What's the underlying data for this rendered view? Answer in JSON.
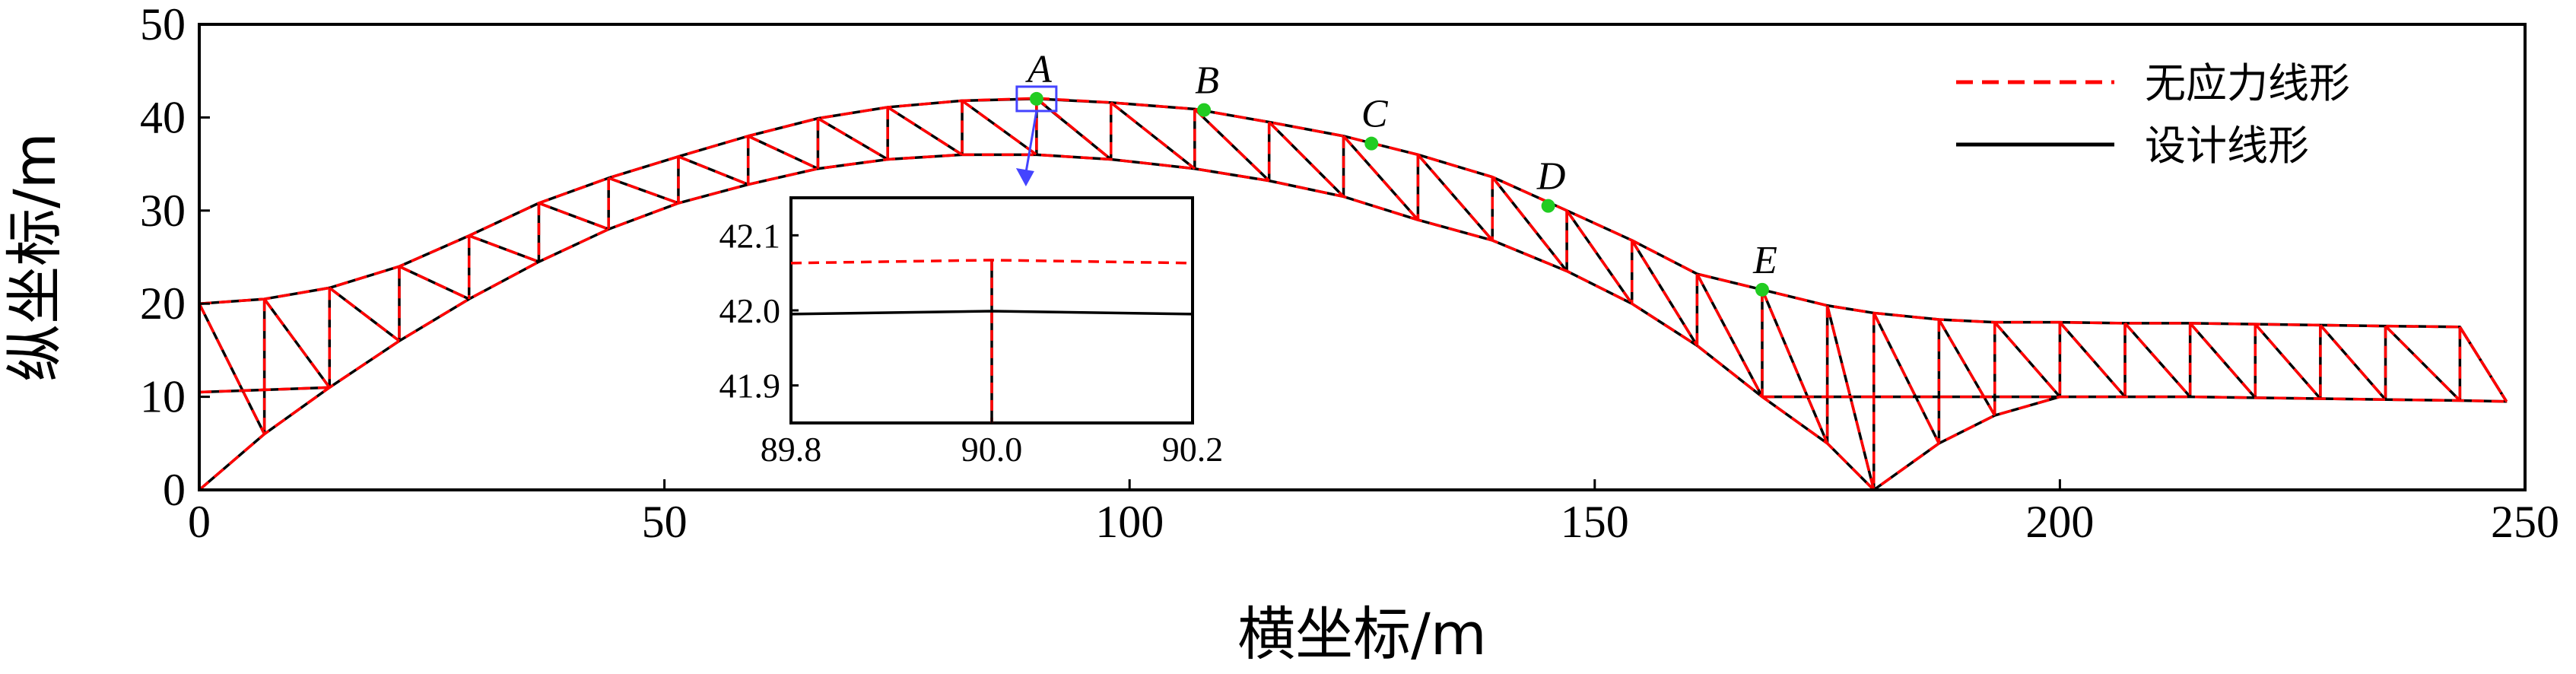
{
  "chart_data": {
    "type": "line",
    "title": "",
    "xlabel": "横坐标/m",
    "ylabel": "纵坐标/m",
    "xlim": [
      0,
      250
    ],
    "ylim": [
      0,
      50
    ],
    "x_ticks": [
      "0",
      "50",
      "100",
      "150",
      "200",
      "250"
    ],
    "y_ticks": [
      "0",
      "10",
      "20",
      "30",
      "40",
      "50"
    ],
    "grid": false,
    "legend_position": "top-right",
    "series": [
      {
        "name": "无应力线形",
        "style": "dashed",
        "color": "#ff0000",
        "top_chord": [
          [
            0,
            20
          ],
          [
            7,
            20.5
          ],
          [
            14,
            21.7
          ],
          [
            21.5,
            24
          ],
          [
            29,
            27.3
          ],
          [
            36.5,
            30.8
          ],
          [
            44,
            33.5
          ],
          [
            51.5,
            35.8
          ],
          [
            59,
            38
          ],
          [
            66.5,
            39.9
          ],
          [
            74,
            41.1
          ],
          [
            82,
            41.8
          ],
          [
            90,
            42.06
          ],
          [
            98,
            41.6
          ],
          [
            107,
            40.9
          ],
          [
            115,
            39.5
          ],
          [
            123,
            38
          ],
          [
            131,
            36
          ],
          [
            139,
            33.6
          ],
          [
            147,
            30
          ],
          [
            154,
            26.8
          ],
          [
            161,
            23.2
          ],
          [
            168,
            21.5
          ],
          [
            175,
            19.8
          ],
          [
            180,
            19
          ],
          [
            187,
            18.3
          ],
          [
            193,
            18
          ],
          [
            200,
            18
          ],
          [
            207,
            17.9
          ],
          [
            214,
            17.9
          ],
          [
            221,
            17.8
          ],
          [
            228,
            17.7
          ],
          [
            235,
            17.6
          ],
          [
            243,
            17.5
          ],
          [
            248,
            9.5
          ]
        ],
        "bottom_chord": [
          [
            0,
            0
          ],
          [
            7,
            6
          ],
          [
            14,
            11
          ],
          [
            21.5,
            16
          ],
          [
            29,
            20.5
          ],
          [
            36.5,
            24.5
          ],
          [
            44,
            28
          ],
          [
            51.5,
            30.8
          ],
          [
            59,
            32.8
          ],
          [
            66.5,
            34.5
          ],
          [
            74,
            35.5
          ],
          [
            82,
            36
          ],
          [
            90,
            36
          ],
          [
            98,
            35.5
          ],
          [
            107,
            34.5
          ],
          [
            115,
            33.2
          ],
          [
            123,
            31.5
          ],
          [
            131,
            29
          ],
          [
            139,
            26.8
          ],
          [
            147,
            23.5
          ],
          [
            154,
            20
          ],
          [
            161,
            15.5
          ],
          [
            168,
            10
          ],
          [
            175,
            5
          ],
          [
            180,
            0
          ],
          [
            187,
            5
          ],
          [
            193,
            8
          ],
          [
            200,
            10
          ],
          [
            207,
            10
          ],
          [
            214,
            10
          ],
          [
            221,
            9.9
          ],
          [
            228,
            9.8
          ],
          [
            235,
            9.7
          ],
          [
            243,
            9.6
          ],
          [
            248,
            9.5
          ]
        ]
      },
      {
        "name": "设计线形",
        "style": "solid",
        "color": "#000000",
        "top_chord": [
          [
            0,
            20
          ],
          [
            7,
            20.5
          ],
          [
            14,
            21.7
          ],
          [
            21.5,
            24
          ],
          [
            29,
            27.3
          ],
          [
            36.5,
            30.8
          ],
          [
            44,
            33.5
          ],
          [
            51.5,
            35.8
          ],
          [
            59,
            38
          ],
          [
            66.5,
            39.9
          ],
          [
            74,
            41.1
          ],
          [
            82,
            41.8
          ],
          [
            90,
            42
          ],
          [
            98,
            41.6
          ],
          [
            107,
            40.9
          ],
          [
            115,
            39.5
          ],
          [
            123,
            38
          ],
          [
            131,
            36
          ],
          [
            139,
            33.6
          ],
          [
            147,
            30
          ],
          [
            154,
            26.8
          ],
          [
            161,
            23.2
          ],
          [
            168,
            21.5
          ],
          [
            175,
            19.8
          ],
          [
            180,
            19
          ],
          [
            187,
            18.3
          ],
          [
            193,
            18
          ],
          [
            200,
            18
          ],
          [
            207,
            17.9
          ],
          [
            214,
            17.9
          ],
          [
            221,
            17.8
          ],
          [
            228,
            17.7
          ],
          [
            235,
            17.6
          ],
          [
            243,
            17.5
          ],
          [
            248,
            9.5
          ]
        ],
        "bottom_chord": [
          [
            0,
            0
          ],
          [
            7,
            6
          ],
          [
            14,
            11
          ],
          [
            21.5,
            16
          ],
          [
            29,
            20.5
          ],
          [
            36.5,
            24.5
          ],
          [
            44,
            28
          ],
          [
            51.5,
            30.8
          ],
          [
            59,
            32.8
          ],
          [
            66.5,
            34.5
          ],
          [
            74,
            35.5
          ],
          [
            82,
            36
          ],
          [
            90,
            36
          ],
          [
            98,
            35.5
          ],
          [
            107,
            34.5
          ],
          [
            115,
            33.2
          ],
          [
            123,
            31.5
          ],
          [
            131,
            29
          ],
          [
            139,
            26.8
          ],
          [
            147,
            23.5
          ],
          [
            154,
            20
          ],
          [
            161,
            15.5
          ],
          [
            168,
            10
          ],
          [
            175,
            5
          ],
          [
            180,
            0
          ],
          [
            187,
            5
          ],
          [
            193,
            8
          ],
          [
            200,
            10
          ],
          [
            207,
            10
          ],
          [
            214,
            10
          ],
          [
            221,
            9.9
          ],
          [
            228,
            9.8
          ],
          [
            235,
            9.7
          ],
          [
            243,
            9.6
          ],
          [
            248,
            9.5
          ]
        ]
      }
    ],
    "extra_members": [
      [
        [
          0,
          10.5
        ],
        [
          14,
          11
        ]
      ],
      [
        [
          168,
          10
        ],
        [
          200,
          10
        ]
      ]
    ],
    "points": [
      {
        "label": "A",
        "x": 90,
        "y": 42
      },
      {
        "label": "B",
        "x": 108,
        "y": 40.8
      },
      {
        "label": "C",
        "x": 126,
        "y": 37.2
      },
      {
        "label": "D",
        "x": 145,
        "y": 30.5
      },
      {
        "label": "E",
        "x": 168,
        "y": 21.5
      }
    ],
    "inset": {
      "xlim": [
        89.8,
        90.2
      ],
      "ylim": [
        41.85,
        42.15
      ],
      "x_ticks": [
        "89.8",
        "90.0",
        "90.2"
      ],
      "y_ticks": [
        "41.9",
        "42.0",
        "42.1"
      ],
      "series": [
        {
          "name": "无应力线形",
          "style": "dashed",
          "color": "#ff0000",
          "x": [
            89.8,
            90.0,
            90.2
          ],
          "y": [
            42.063,
            42.067,
            42.063
          ]
        },
        {
          "name": "设计线形",
          "style": "solid",
          "color": "#000000",
          "x": [
            89.8,
            90.0,
            90.2
          ],
          "y": [
            41.995,
            41.999,
            41.995
          ]
        }
      ],
      "vertical_member_x": 90.0
    },
    "colors": {
      "stress_free": "#ff0000",
      "design": "#000000",
      "point": "#22cc22",
      "zoom_marker": "#4444ff"
    }
  }
}
